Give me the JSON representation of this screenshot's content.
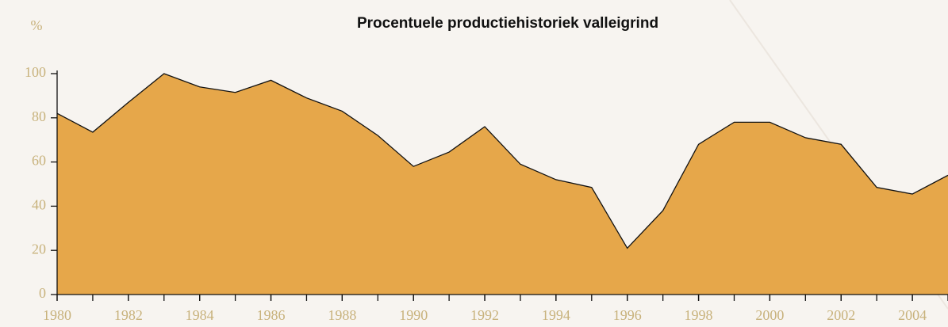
{
  "chart_data": {
    "type": "area",
    "title": "Procentuele productiehistoriek valleigrind",
    "y_label": "%",
    "x": [
      1980,
      1981,
      1982,
      1983,
      1984,
      1985,
      1986,
      1987,
      1988,
      1989,
      1990,
      1991,
      1992,
      1993,
      1994,
      1995,
      1996,
      1997,
      1998,
      1999,
      2000,
      2001,
      2002,
      2003,
      2004,
      2005
    ],
    "values": [
      82,
      73.5,
      87,
      100,
      94,
      91.5,
      97,
      89,
      83,
      72,
      58,
      64.5,
      76,
      59,
      52,
      48.5,
      21,
      38,
      68,
      78,
      78,
      71,
      68,
      48.5,
      45.5,
      54
    ],
    "color": "#e6a74a",
    "xlim": [
      1980,
      2005
    ],
    "xticks": [
      1980,
      1982,
      1984,
      1986,
      1988,
      1990,
      1992,
      1994,
      1996,
      1998,
      2000,
      2002,
      2004
    ],
    "ylim": [
      0,
      100
    ],
    "yticks": [
      0,
      20,
      40,
      60,
      80,
      100
    ]
  }
}
